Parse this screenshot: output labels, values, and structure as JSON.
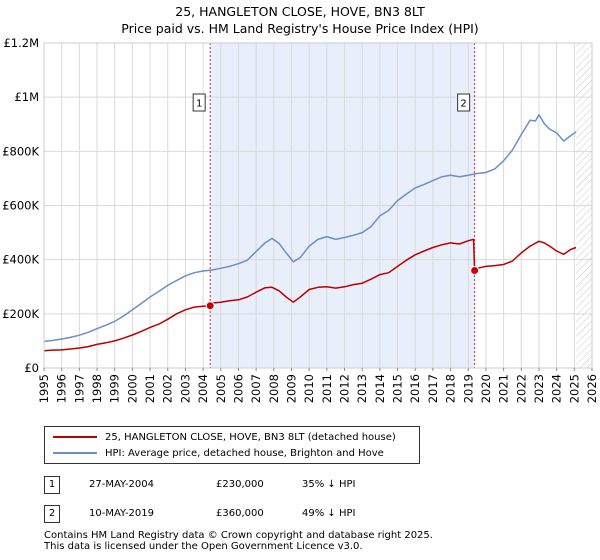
{
  "chart_data": {
    "type": "line",
    "title": "25, HANGLETON CLOSE, HOVE, BN3 8LT",
    "subtitle": "Price paid vs. HM Land Registry's House Price Index (HPI)",
    "xlim": [
      1995,
      2026
    ],
    "ylim": [
      0,
      1200000
    ],
    "y_ticks": [
      {
        "value": 0,
        "label": "£0"
      },
      {
        "value": 200000,
        "label": "£200K"
      },
      {
        "value": 400000,
        "label": "£400K"
      },
      {
        "value": 600000,
        "label": "£600K"
      },
      {
        "value": 800000,
        "label": "£800K"
      },
      {
        "value": 1000000,
        "label": "£1M"
      },
      {
        "value": 1200000,
        "label": "£1.2M"
      }
    ],
    "x_ticks": [
      "1995",
      "1996",
      "1997",
      "1998",
      "1999",
      "2000",
      "2001",
      "2002",
      "2003",
      "2004",
      "2005",
      "2006",
      "2007",
      "2008",
      "2009",
      "2010",
      "2011",
      "2012",
      "2013",
      "2014",
      "2015",
      "2016",
      "2017",
      "2018",
      "2019",
      "2020",
      "2021",
      "2022",
      "2023",
      "2024",
      "2025",
      "2026"
    ],
    "grid": true,
    "shaded_period": [
      2004.4,
      2019.36
    ],
    "future_hatch_from": 2025.1,
    "series": [
      {
        "name": "25, HANGLETON CLOSE, HOVE, BN3 8LT (detached house)",
        "color": "#bb0000",
        "x": [
          1995.0,
          1995.5,
          1996.0,
          1996.5,
          1997.0,
          1997.5,
          1998.0,
          1998.5,
          1999.0,
          1999.5,
          2000.0,
          2000.5,
          2001.0,
          2001.5,
          2002.0,
          2002.5,
          2003.0,
          2003.5,
          2004.0,
          2004.4,
          2004.5,
          2005.0,
          2005.5,
          2006.0,
          2006.5,
          2007.0,
          2007.5,
          2007.9,
          2008.3,
          2008.7,
          2009.1,
          2009.5,
          2010.0,
          2010.5,
          2011.0,
          2011.5,
          2012.0,
          2012.5,
          2013.0,
          2013.5,
          2014.0,
          2014.5,
          2015.0,
          2015.5,
          2016.0,
          2016.5,
          2017.0,
          2017.5,
          2018.0,
          2018.5,
          2019.0,
          2019.3,
          2019.36,
          2019.5,
          2020.0,
          2020.5,
          2021.0,
          2021.5,
          2022.0,
          2022.5,
          2023.0,
          2023.3,
          2023.6,
          2024.0,
          2024.4,
          2024.8,
          2025.1
        ],
        "values": [
          64000,
          66000,
          67000,
          70000,
          74000,
          79000,
          87000,
          93000,
          100000,
          110000,
          122000,
          135000,
          150000,
          162000,
          180000,
          200000,
          215000,
          225000,
          228000,
          230000,
          240000,
          243000,
          248000,
          252000,
          262000,
          280000,
          296000,
          298000,
          285000,
          262000,
          243000,
          262000,
          290000,
          298000,
          300000,
          295000,
          300000,
          308000,
          313000,
          328000,
          345000,
          352000,
          375000,
          398000,
          418000,
          432000,
          445000,
          455000,
          462000,
          458000,
          470000,
          475000,
          360000,
          368000,
          375000,
          378000,
          382000,
          395000,
          425000,
          450000,
          468000,
          462000,
          450000,
          432000,
          420000,
          438000,
          445000
        ]
      },
      {
        "name": "HPI: Average price, detached house, Brighton and Hove",
        "color": "#6a8fc8",
        "x": [
          1995.0,
          1995.5,
          1996.0,
          1996.5,
          1997.0,
          1997.5,
          1998.0,
          1998.5,
          1999.0,
          1999.5,
          2000.0,
          2000.5,
          2001.0,
          2001.5,
          2002.0,
          2002.5,
          2003.0,
          2003.5,
          2004.0,
          2004.5,
          2005.0,
          2005.5,
          2006.0,
          2006.5,
          2007.0,
          2007.5,
          2007.9,
          2008.3,
          2008.7,
          2009.1,
          2009.5,
          2010.0,
          2010.5,
          2011.0,
          2011.5,
          2012.0,
          2012.5,
          2013.0,
          2013.5,
          2014.0,
          2014.5,
          2015.0,
          2015.5,
          2016.0,
          2016.5,
          2017.0,
          2017.5,
          2018.0,
          2018.5,
          2019.0,
          2019.5,
          2020.0,
          2020.5,
          2021.0,
          2021.5,
          2022.0,
          2022.5,
          2022.8,
          2023.0,
          2023.3,
          2023.6,
          2024.0,
          2024.4,
          2024.8,
          2025.1
        ],
        "values": [
          98000,
          102000,
          107000,
          113000,
          121000,
          132000,
          145000,
          158000,
          172000,
          192000,
          215000,
          238000,
          262000,
          283000,
          305000,
          323000,
          340000,
          352000,
          358000,
          362000,
          368000,
          375000,
          385000,
          398000,
          430000,
          462000,
          478000,
          460000,
          425000,
          392000,
          408000,
          450000,
          475000,
          485000,
          475000,
          482000,
          490000,
          500000,
          522000,
          562000,
          582000,
          618000,
          642000,
          665000,
          678000,
          692000,
          706000,
          712000,
          706000,
          712000,
          718000,
          722000,
          735000,
          765000,
          805000,
          862000,
          915000,
          912000,
          935000,
          902000,
          882000,
          868000,
          838000,
          858000,
          872000
        ]
      }
    ],
    "markers": [
      {
        "label": "1",
        "x": 2004.4,
        "price": 230000
      },
      {
        "label": "2",
        "x": 2019.36,
        "price": 360000
      }
    ]
  },
  "title_line1": "25, HANGLETON CLOSE, HOVE, BN3 8LT",
  "title_line2": "Price paid vs. HM Land Registry's House Price Index (HPI)",
  "legend": {
    "red_label": "25, HANGLETON CLOSE, HOVE, BN3 8LT (detached house)",
    "blue_label": "HPI: Average price, detached house, Brighton and Hove",
    "red_color": "#bb0000",
    "blue_color": "#6a8fc8"
  },
  "transactions": [
    {
      "num": "1",
      "date": "27-MAY-2004",
      "price": "£230,000",
      "hpi": "35% ↓ HPI"
    },
    {
      "num": "2",
      "date": "10-MAY-2019",
      "price": "£360,000",
      "hpi": "49% ↓ HPI"
    }
  ],
  "footer": {
    "line1": "Contains HM Land Registry data © Crown copyright and database right 2025.",
    "line2": "This data is licensed under the Open Government Licence v3.0."
  }
}
